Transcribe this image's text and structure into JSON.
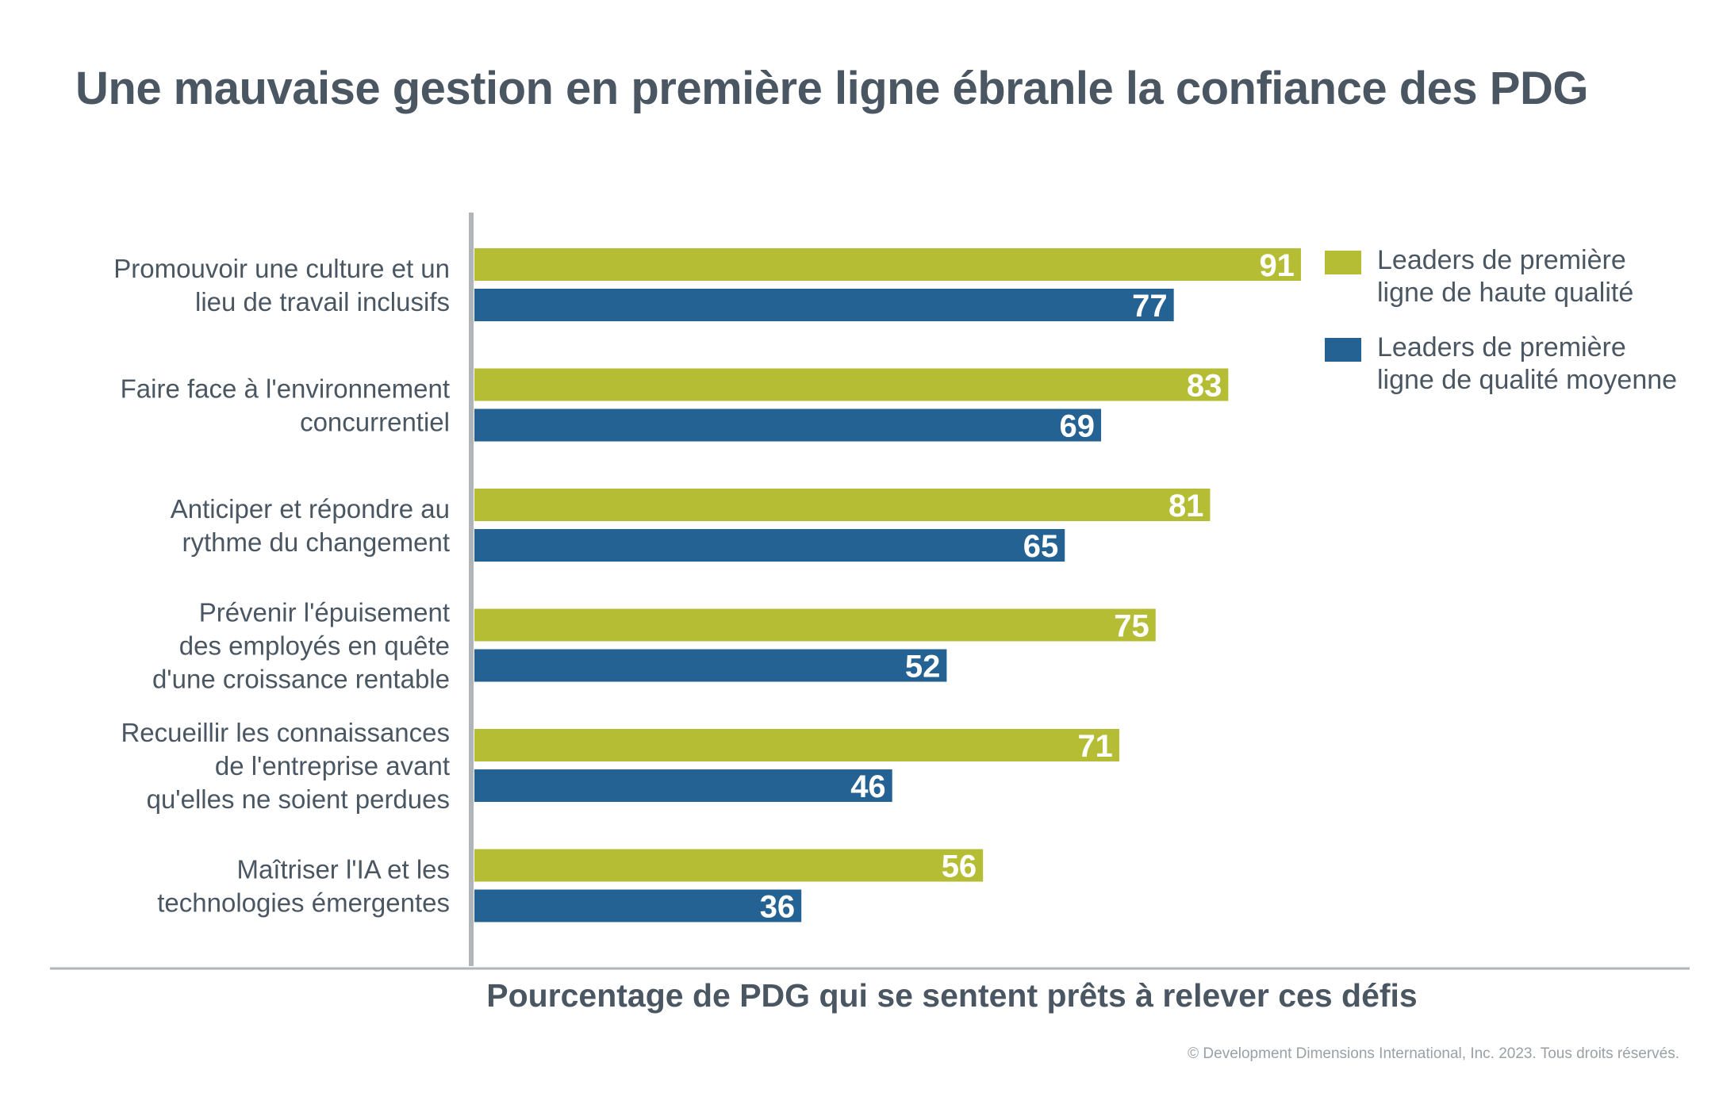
{
  "chart_data": {
    "type": "bar",
    "orientation": "horizontal",
    "title": "Une mauvaise gestion en première ligne ébranle la confiance des PDG",
    "xlabel": "Pourcentage de PDG qui se sentent prêts à relever ces défis",
    "ylabel": "",
    "xlim": [
      0,
      100
    ],
    "grid": false,
    "legend_position": "top-right",
    "categories": [
      [
        "Promouvoir une culture et un",
        "lieu de travail inclusifs"
      ],
      [
        "Faire face à l'environnement",
        "concurrentiel"
      ],
      [
        "Anticiper et répondre au",
        "rythme du changement"
      ],
      [
        "Prévenir l'épuisement",
        "des employés en quête",
        "d'une croissance rentable"
      ],
      [
        "Recueillir les connaissances",
        "de l'entreprise avant",
        "qu'elles ne soient perdues"
      ],
      [
        "Maîtriser l'IA et les",
        "technologies émergentes"
      ]
    ],
    "series": [
      {
        "name": "Leaders de première ligne de haute qualité",
        "name_lines": [
          "Leaders de première",
          "ligne de haute qualité"
        ],
        "color": "#b5bd35",
        "values": [
          91,
          83,
          81,
          75,
          71,
          56
        ]
      },
      {
        "name": "Leaders de première ligne de qualité moyenne",
        "name_lines": [
          "Leaders de première",
          "ligne de qualité moyenne"
        ],
        "color": "#236293",
        "values": [
          77,
          69,
          65,
          52,
          46,
          36
        ]
      }
    ]
  },
  "footer": {
    "copyright": "© Development Dimensions International, Inc. 2023. Tous droits réservés."
  },
  "colors": {
    "title_text": "#4a5763",
    "axis_line": "#b0b5ba",
    "value_label": "#ffffff"
  }
}
